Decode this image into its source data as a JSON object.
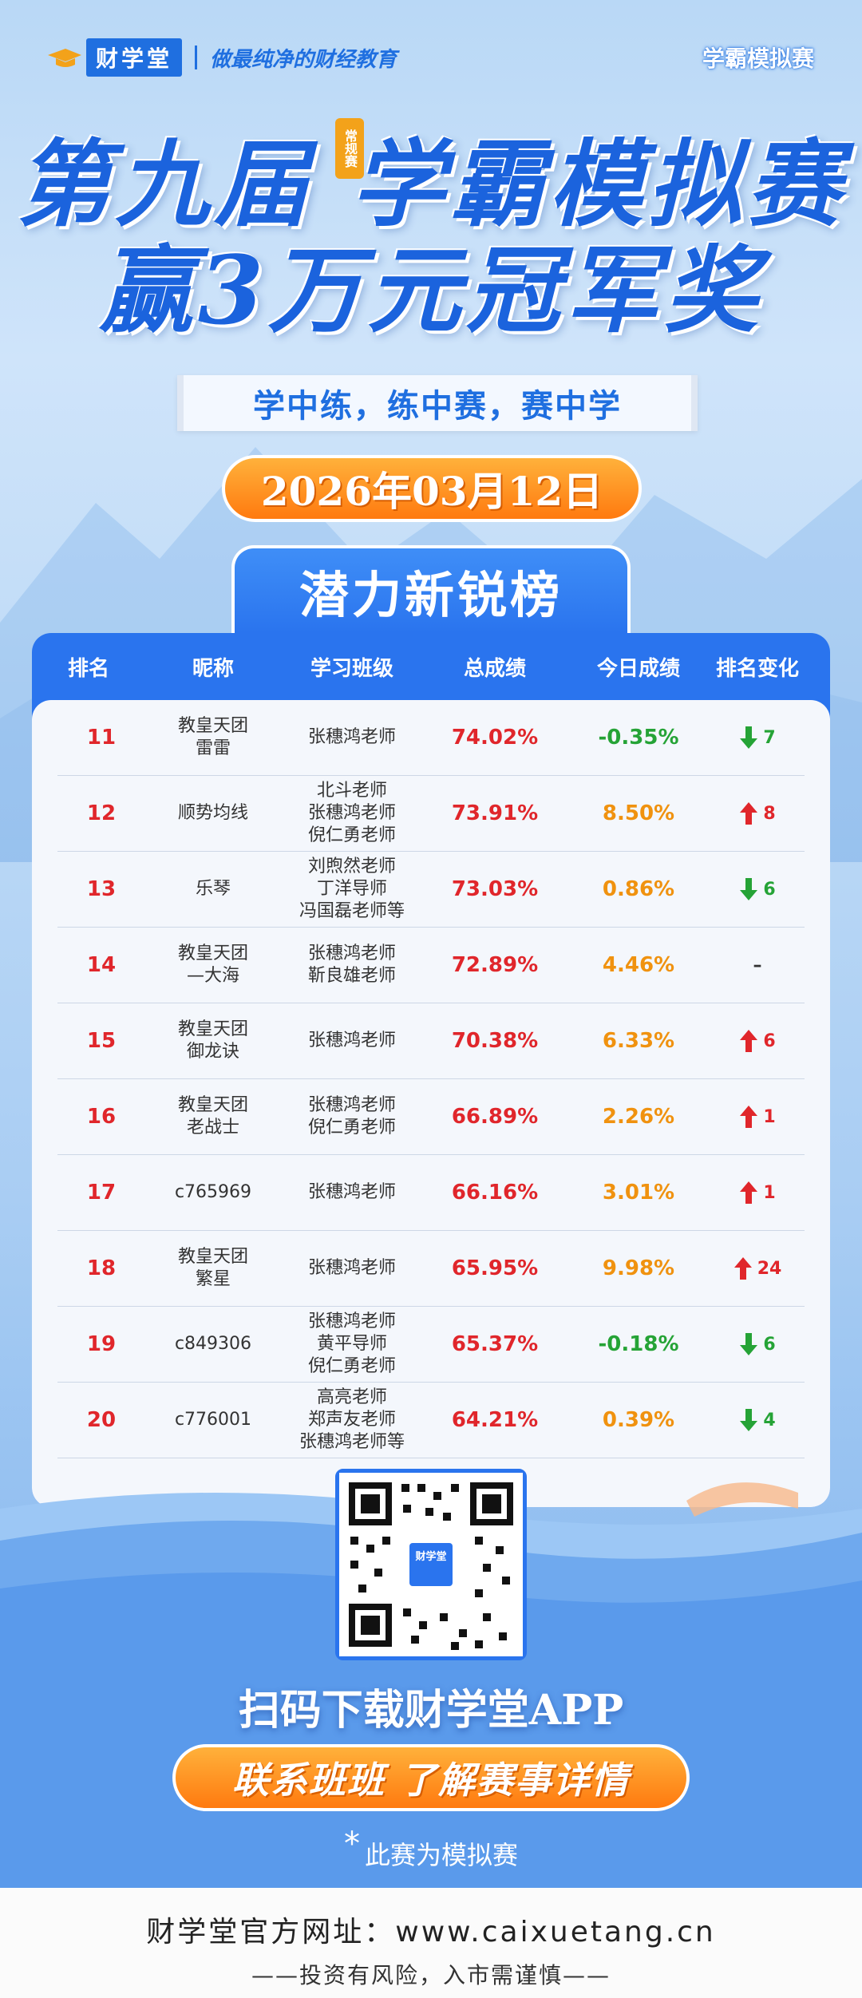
{
  "header": {
    "logo_text": "财学堂",
    "slogan": "做最纯净的财经教育",
    "corner_tag": "学霸模拟赛"
  },
  "hero": {
    "title_line1": "第九届 学霸模拟赛",
    "title_line2": "赢3万元冠军奖",
    "seal_text": "常规赛",
    "motto": "学中练，练中赛，赛中学",
    "date": "2026年03月12日"
  },
  "board": {
    "title": "潜力新锐榜",
    "columns": [
      "排名",
      "昵称",
      "学习班级",
      "总成绩",
      "今日成绩",
      "排名变化"
    ],
    "rows": [
      {
        "rank": "11",
        "name": "教皇天团\n雷雷",
        "class": "张穗鸿老师",
        "total": "74.02%",
        "today": "-0.35%",
        "today_dir": "down",
        "change_dir": "down",
        "change": "7"
      },
      {
        "rank": "12",
        "name": "顺势均线",
        "class": "北斗老师\n张穗鸿老师\n倪仁勇老师",
        "total": "73.91%",
        "today": "8.50%",
        "today_dir": "up",
        "change_dir": "up",
        "change": "8"
      },
      {
        "rank": "13",
        "name": "乐琴",
        "class": "刘煦然老师\n丁洋导师\n冯国磊老师等",
        "total": "73.03%",
        "today": "0.86%",
        "today_dir": "up",
        "change_dir": "down",
        "change": "6"
      },
      {
        "rank": "14",
        "name": "教皇天团\n—大海",
        "class": "张穗鸿老师\n靳良雄老师",
        "total": "72.89%",
        "today": "4.46%",
        "today_dir": "up",
        "change_dir": "none",
        "change": "–"
      },
      {
        "rank": "15",
        "name": "教皇天团\n御龙诀",
        "class": "张穗鸿老师",
        "total": "70.38%",
        "today": "6.33%",
        "today_dir": "up",
        "change_dir": "up",
        "change": "6"
      },
      {
        "rank": "16",
        "name": "教皇天团\n老战士",
        "class": "张穗鸿老师\n倪仁勇老师",
        "total": "66.89%",
        "today": "2.26%",
        "today_dir": "up",
        "change_dir": "up",
        "change": "1"
      },
      {
        "rank": "17",
        "name": "c765969",
        "class": "张穗鸿老师",
        "total": "66.16%",
        "today": "3.01%",
        "today_dir": "up",
        "change_dir": "up",
        "change": "1"
      },
      {
        "rank": "18",
        "name": "教皇天团\n繁星",
        "class": "张穗鸿老师",
        "total": "65.95%",
        "today": "9.98%",
        "today_dir": "up",
        "change_dir": "up",
        "change": "24"
      },
      {
        "rank": "19",
        "name": "c849306",
        "class": "张穗鸿老师\n黄平导师\n倪仁勇老师",
        "total": "65.37%",
        "today": "-0.18%",
        "today_dir": "down",
        "change_dir": "down",
        "change": "6"
      },
      {
        "rank": "20",
        "name": "c776001",
        "class": "高亮老师\n郑声友老师\n张穗鸿老师等",
        "total": "64.21%",
        "today": "0.39%",
        "today_dir": "up",
        "change_dir": "down",
        "change": "4"
      }
    ]
  },
  "bottom": {
    "qr_label": "财学堂",
    "scan_text": "扫码下载财学堂APP",
    "contact": "联系班班  了解赛事详情",
    "note": "此赛为模拟赛",
    "note_star": "*"
  },
  "footer": {
    "url_line": "财学堂官方网址：www.caixuetang.cn",
    "risk_line": "——投资有风险，入市需谨慎——"
  },
  "colors": {
    "primary_blue": "#2a74ee",
    "orange": "#ff8a1c",
    "red": "#e0262b",
    "green": "#25a336"
  }
}
